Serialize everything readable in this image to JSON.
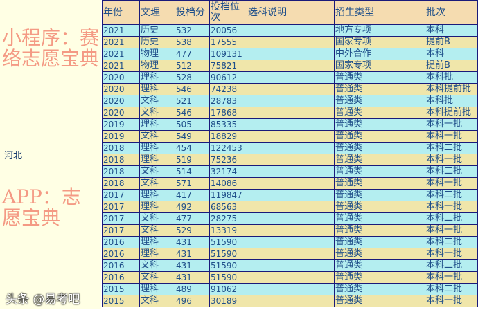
{
  "province": "河北",
  "headers": [
    "年份",
    "文理",
    "投档分",
    "投档位次",
    "选科说明",
    "招生类型",
    "批次"
  ],
  "rows": [
    [
      "2021",
      "历史",
      "532",
      "20056",
      "",
      "地方专项",
      "本科"
    ],
    [
      "2021",
      "历史",
      "538",
      "17555",
      "",
      "国家专项",
      "提前B"
    ],
    [
      "2021",
      "物理",
      "477",
      "109131",
      "",
      "中外合作",
      "本科"
    ],
    [
      "2021",
      "物理",
      "512",
      "75821",
      "",
      "国家专项",
      "提前B"
    ],
    [
      "2020",
      "理科",
      "528",
      "90612",
      "",
      "普通类",
      "本科批"
    ],
    [
      "2020",
      "理科",
      "546",
      "74238",
      "",
      "普通类",
      "本科提前批"
    ],
    [
      "2020",
      "文科",
      "521",
      "28783",
      "",
      "普通类",
      "本科批"
    ],
    [
      "2020",
      "文科",
      "546",
      "17868",
      "",
      "普通类",
      "本科提前批"
    ],
    [
      "2019",
      "理科",
      "505",
      "85335",
      "",
      "普通类",
      "本科一批"
    ],
    [
      "2019",
      "文科",
      "549",
      "18829",
      "",
      "普通类",
      "本科一批"
    ],
    [
      "2018",
      "理科",
      "454",
      "122453",
      "",
      "普通类",
      "本科二批"
    ],
    [
      "2018",
      "理科",
      "519",
      "75236",
      "",
      "普通类",
      "本科一批"
    ],
    [
      "2018",
      "文科",
      "514",
      "32174",
      "",
      "普通类",
      "本科二批"
    ],
    [
      "2018",
      "文科",
      "571",
      "14086",
      "",
      "普通类",
      "本科一批"
    ],
    [
      "2017",
      "理科",
      "417",
      "119847",
      "",
      "普通类",
      "本科二批"
    ],
    [
      "2017",
      "理科",
      "492",
      "68563",
      "",
      "普通类",
      "本科一批"
    ],
    [
      "2017",
      "文科",
      "477",
      "28275",
      "",
      "普通类",
      "本科二批"
    ],
    [
      "2017",
      "文科",
      "529",
      "13319",
      "",
      "普通类",
      "本科一批"
    ],
    [
      "2016",
      "理科",
      "431",
      "51590",
      "",
      "普通类",
      "本科二批"
    ],
    [
      "2016",
      "理科",
      "431",
      "51590",
      "",
      "普通类",
      "本科一批"
    ],
    [
      "2016",
      "文科",
      "431",
      "51590",
      "",
      "普通类",
      "本科二批"
    ],
    [
      "2016",
      "文科",
      "431",
      "51590",
      "",
      "普通类",
      "本科一批"
    ],
    [
      "2015",
      "理科",
      "489",
      "91062",
      "",
      "普通类",
      "本科二批"
    ],
    [
      "2015",
      "文科",
      "496",
      "30189",
      "",
      "普通类",
      "本科一批"
    ]
  ],
  "watermark": {
    "line1": "小程序：赛络志愿宝典",
    "line2": "APP：志愿宝典"
  },
  "credit": "头条 @易考吧"
}
